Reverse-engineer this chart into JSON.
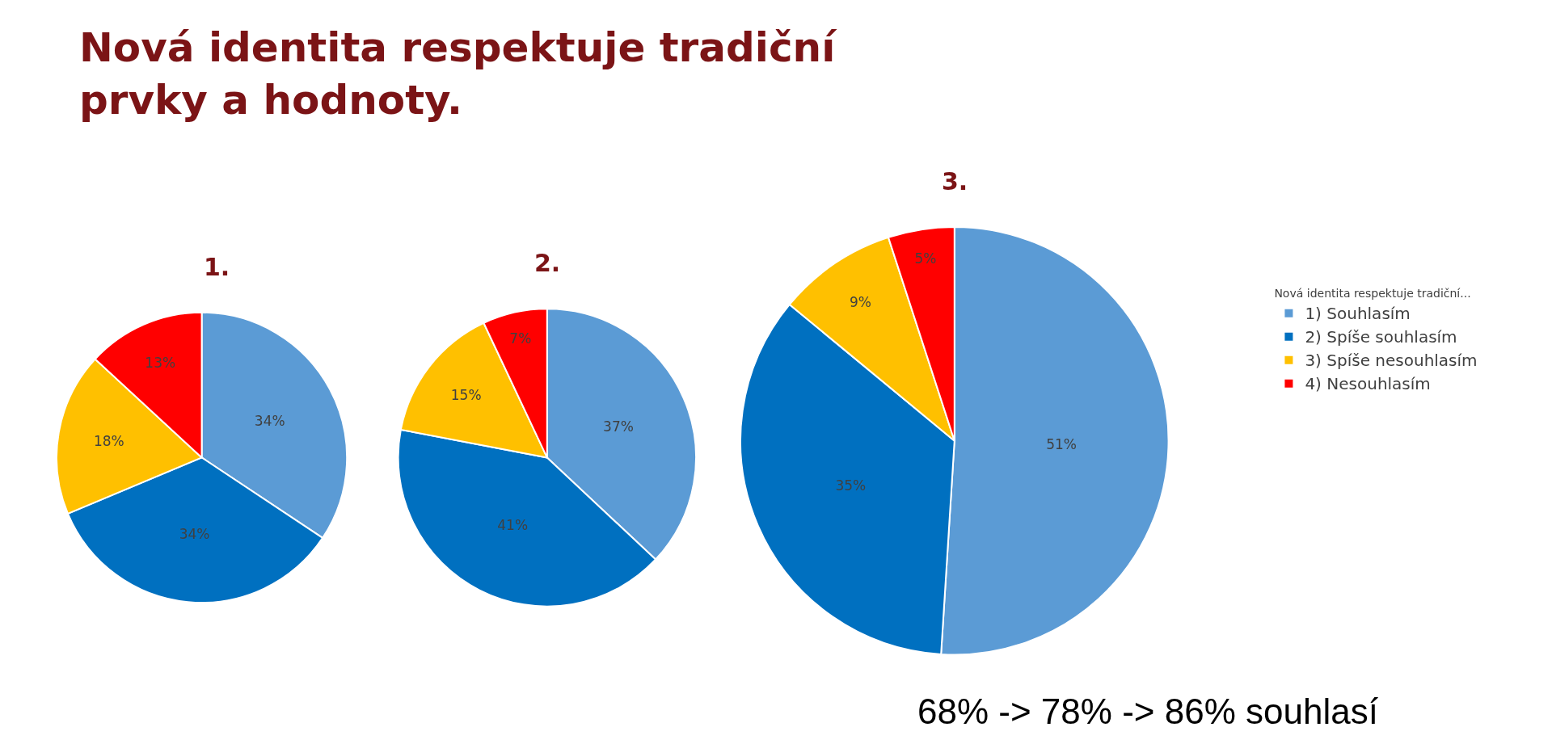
{
  "chart_data": [
    {
      "type": "pie",
      "title": "Nová identita respektuje tradiční prvky a hodnoty.",
      "subtitle": "1.",
      "categories": [
        "1) Souhlasím",
        "2) Spíše souhlasím",
        "3) Spíše nesouhlasím",
        "4) Nesouhlasím"
      ],
      "values": [
        34,
        34,
        18,
        13
      ],
      "value_labels": [
        "34%",
        "34%",
        "18%",
        "13%"
      ],
      "colors": [
        "#5b9bd5",
        "#0070c0",
        "#ffc000",
        "#ff0000"
      ],
      "legend": "right",
      "legend_title": "Nová identita respektuje tradiční..."
    },
    {
      "type": "pie",
      "title": "2.",
      "categories": [
        null,
        null,
        null,
        null
      ],
      "values": [
        37,
        41,
        15,
        7
      ],
      "value_labels": [
        "37%",
        "41%",
        "15%",
        "7%"
      ],
      "colors": [
        "#5b9bd5",
        "#0070c0",
        "#ffc000",
        "#ff0000"
      ]
    },
    {
      "type": "pie",
      "title": "3.",
      "categories": [
        null,
        null,
        null,
        null
      ],
      "values": [
        51,
        35,
        9,
        5
      ],
      "value_labels": [
        "51%",
        "35%",
        "9%",
        "5%"
      ],
      "colors": [
        "#5b9bd5",
        "#0070c0",
        "#ffc000",
        "#ff0000"
      ],
      "annotations": [
        "68% -> 78% -> 86% souhlasí"
      ]
    }
  ]
}
